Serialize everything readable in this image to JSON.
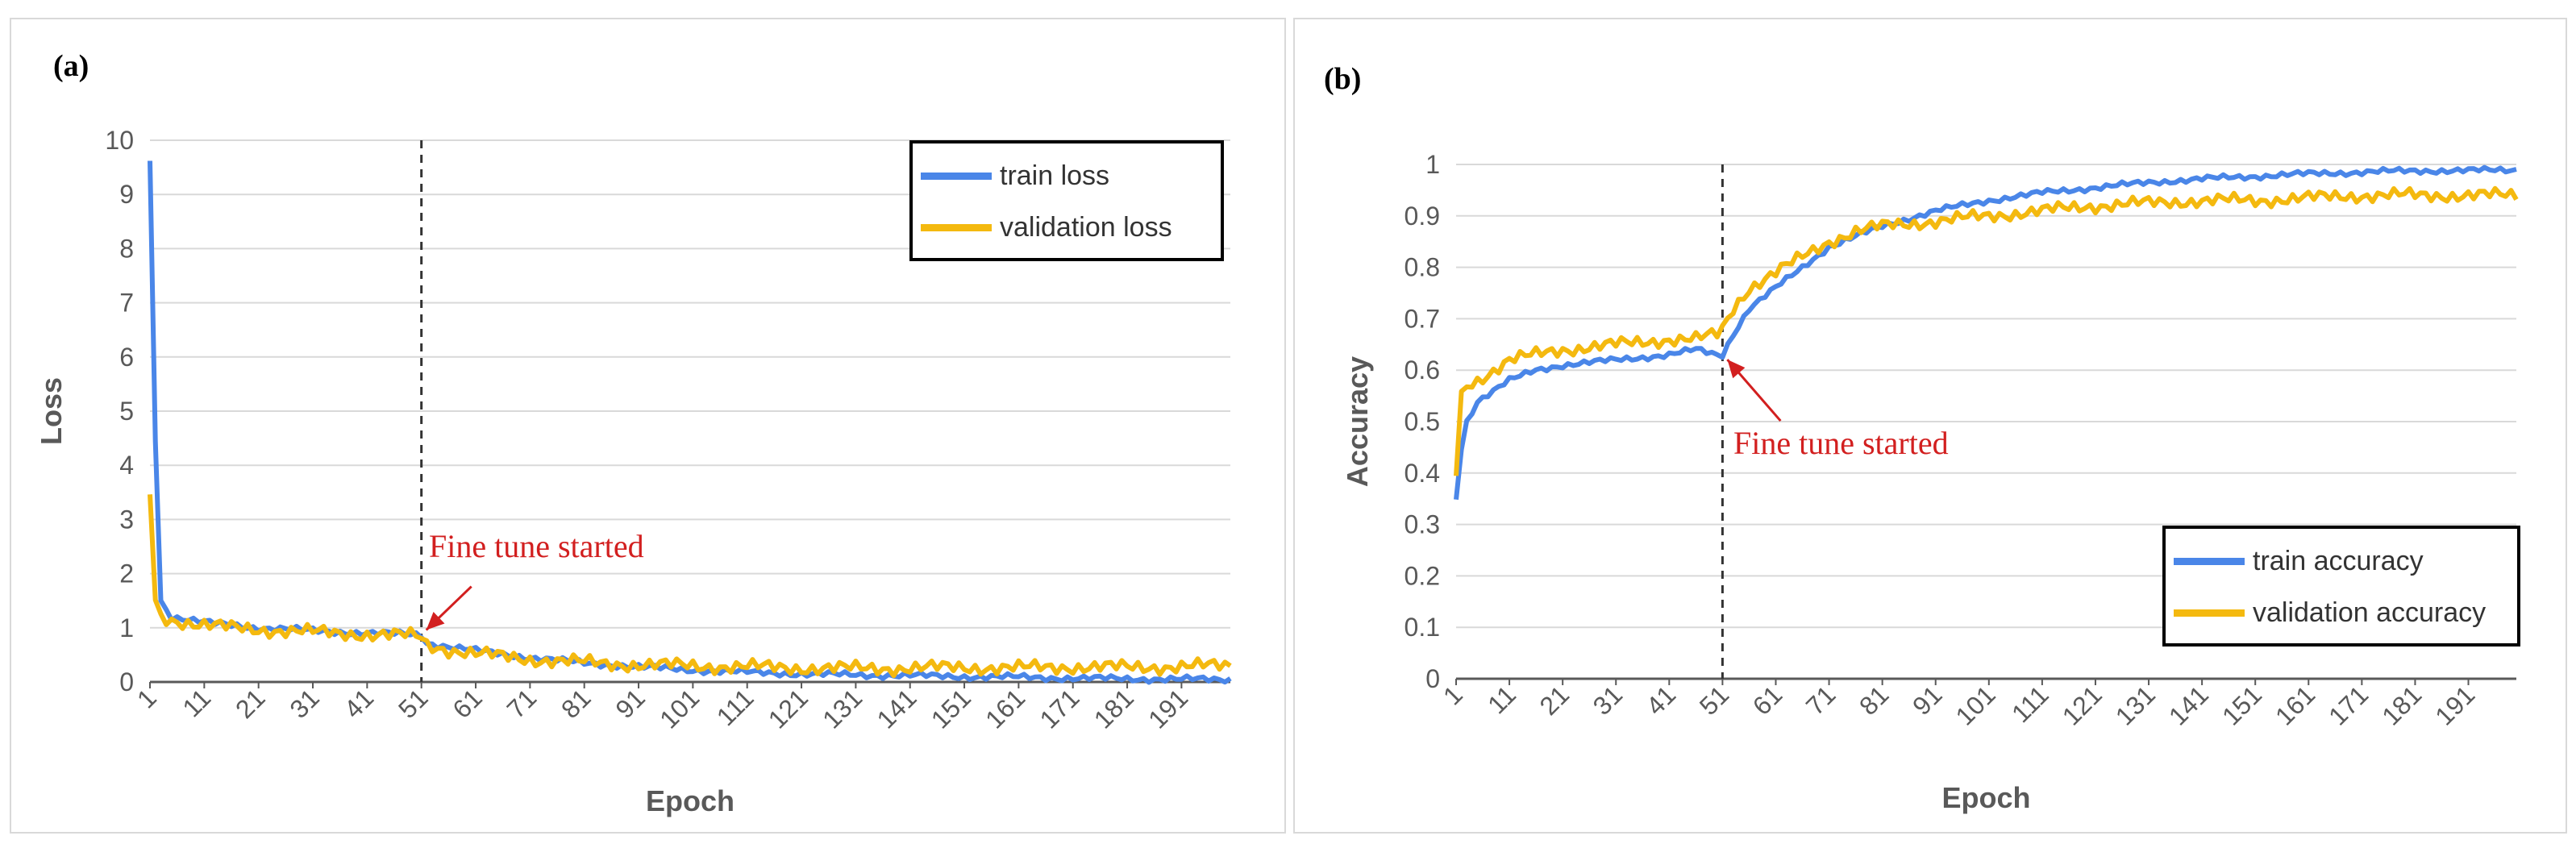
{
  "colors": {
    "train": "#4a86e8",
    "validation": "#f4b90f",
    "annotation": "#d21f1f",
    "grid": "#d9d9d9",
    "axis": "#595959"
  },
  "chart_data": [
    {
      "panel_label": "(a)",
      "type": "line",
      "title": "",
      "xlabel": "Epoch",
      "ylabel": "Loss",
      "xlim": [
        1,
        200
      ],
      "ylim": [
        0,
        10
      ],
      "yticks": [
        "0",
        "1",
        "2",
        "3",
        "4",
        "5",
        "6",
        "7",
        "8",
        "9",
        "10"
      ],
      "xtick_labels": [
        "1",
        "11",
        "21",
        "31",
        "41",
        "51",
        "61",
        "71",
        "81",
        "91",
        "101",
        "111",
        "121",
        "131",
        "141",
        "151",
        "161",
        "171",
        "181",
        "191"
      ],
      "grid": true,
      "legend_position": "top-right",
      "vline_x": 51,
      "annotation": {
        "text": "Fine tune started",
        "x": 51,
        "y": 0.9
      },
      "series": [
        {
          "name": "train loss",
          "x": [
            1,
            2,
            3,
            5,
            8,
            11,
            16,
            21,
            31,
            41,
            50,
            51,
            52,
            56,
            61,
            71,
            81,
            91,
            101,
            111,
            121,
            131,
            141,
            151,
            161,
            171,
            181,
            191,
            200
          ],
          "values": [
            9.6,
            4.5,
            1.5,
            1.2,
            1.15,
            1.1,
            1.05,
            1.0,
            0.95,
            0.9,
            0.88,
            0.87,
            0.72,
            0.65,
            0.58,
            0.45,
            0.35,
            0.28,
            0.22,
            0.18,
            0.15,
            0.13,
            0.12,
            0.1,
            0.09,
            0.07,
            0.06,
            0.05,
            0.05
          ]
        },
        {
          "name": "validation loss",
          "x": [
            1,
            2,
            3,
            5,
            8,
            11,
            16,
            21,
            31,
            41,
            50,
            51,
            52,
            56,
            61,
            71,
            81,
            91,
            101,
            111,
            121,
            131,
            141,
            151,
            161,
            171,
            181,
            191,
            200
          ],
          "values": [
            3.5,
            1.5,
            1.2,
            1.15,
            1.1,
            1.05,
            1.0,
            0.97,
            0.92,
            0.88,
            0.85,
            0.82,
            0.68,
            0.6,
            0.52,
            0.42,
            0.36,
            0.32,
            0.3,
            0.28,
            0.26,
            0.25,
            0.26,
            0.27,
            0.26,
            0.28,
            0.27,
            0.29,
            0.3
          ]
        }
      ]
    },
    {
      "panel_label": "(b)",
      "type": "line",
      "title": "",
      "xlabel": "Epoch",
      "ylabel": "Accuracy",
      "xlim": [
        1,
        200
      ],
      "ylim": [
        0,
        1
      ],
      "yticks": [
        "0",
        "0.1",
        "0.2",
        "0.3",
        "0.4",
        "0.5",
        "0.6",
        "0.7",
        "0.8",
        "0.9",
        "1"
      ],
      "xtick_labels": [
        "1",
        "11",
        "21",
        "31",
        "41",
        "51",
        "61",
        "71",
        "81",
        "91",
        "101",
        "111",
        "121",
        "131",
        "141",
        "151",
        "161",
        "171",
        "181",
        "191"
      ],
      "grid": true,
      "legend_position": "bottom-right",
      "vline_x": 51,
      "annotation": {
        "text": "Fine tune started",
        "x": 51,
        "y": 0.63
      },
      "series": [
        {
          "name": "train accuracy",
          "x": [
            1,
            2,
            3,
            5,
            8,
            11,
            16,
            21,
            31,
            41,
            46,
            50,
            51,
            53,
            56,
            61,
            66,
            71,
            76,
            81,
            91,
            101,
            111,
            121,
            131,
            141,
            151,
            161,
            171,
            181,
            191,
            200
          ],
          "values": [
            0.35,
            0.45,
            0.5,
            0.54,
            0.56,
            0.58,
            0.6,
            0.61,
            0.62,
            0.63,
            0.64,
            0.63,
            0.63,
            0.67,
            0.72,
            0.76,
            0.8,
            0.84,
            0.86,
            0.88,
            0.91,
            0.93,
            0.945,
            0.955,
            0.965,
            0.972,
            0.977,
            0.982,
            0.985,
            0.988,
            0.988,
            0.99
          ]
        },
        {
          "name": "validation accuracy",
          "x": [
            1,
            2,
            3,
            5,
            8,
            11,
            16,
            21,
            31,
            41,
            46,
            50,
            51,
            53,
            56,
            61,
            66,
            71,
            76,
            81,
            91,
            101,
            111,
            121,
            131,
            141,
            151,
            161,
            171,
            181,
            191,
            200
          ],
          "values": [
            0.4,
            0.55,
            0.57,
            0.58,
            0.6,
            0.62,
            0.63,
            0.64,
            0.65,
            0.66,
            0.66,
            0.67,
            0.68,
            0.72,
            0.76,
            0.79,
            0.82,
            0.85,
            0.87,
            0.88,
            0.89,
            0.9,
            0.91,
            0.92,
            0.925,
            0.93,
            0.93,
            0.935,
            0.94,
            0.94,
            0.94,
            0.94
          ]
        }
      ]
    }
  ]
}
